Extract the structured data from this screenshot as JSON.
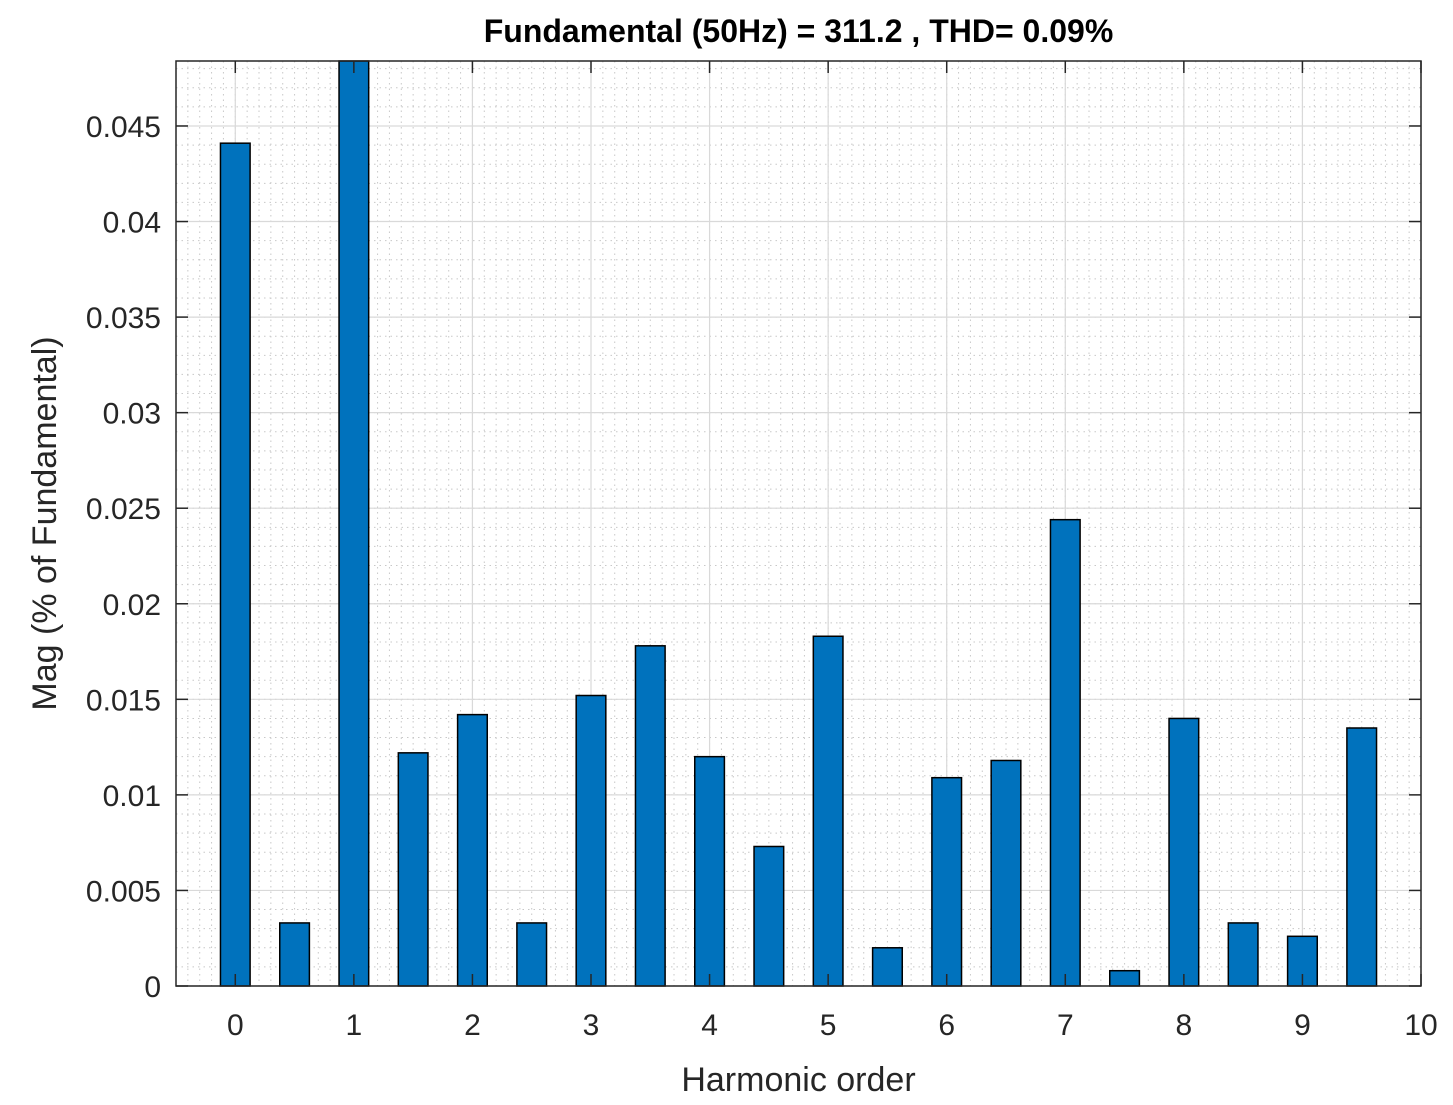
{
  "chart_data": {
    "type": "bar",
    "title": "Fundamental (50Hz) = 311.2 , THD= 0.09%",
    "xlabel": "Harmonic order",
    "ylabel": "Mag (% of Fundamental)",
    "xlim": [
      -0.5,
      10
    ],
    "ylim": [
      0,
      0.0484
    ],
    "xticks": [
      0,
      1,
      2,
      3,
      4,
      5,
      6,
      7,
      8,
      9,
      10
    ],
    "xtick_labels": [
      "0",
      "1",
      "2",
      "3",
      "4",
      "5",
      "6",
      "7",
      "8",
      "9",
      "10"
    ],
    "yticks": [
      0,
      0.005,
      0.01,
      0.015,
      0.02,
      0.025,
      0.03,
      0.035,
      0.04,
      0.045
    ],
    "ytick_labels": [
      "0",
      "0.005",
      "0.01",
      "0.015",
      "0.02",
      "0.025",
      "0.03",
      "0.035",
      "0.04",
      "0.045"
    ],
    "grid": true,
    "minor_grid": true,
    "bar_width": 0.25,
    "x": [
      0,
      0.5,
      1,
      1.5,
      2,
      2.5,
      3,
      3.5,
      4,
      4.5,
      5,
      5.5,
      6,
      6.5,
      7,
      7.5,
      8,
      8.5,
      9,
      9.5
    ],
    "values": [
      0.0441,
      0.0033,
      0.0484,
      0.0122,
      0.0142,
      0.0033,
      0.0152,
      0.0178,
      0.012,
      0.0073,
      0.0183,
      0.002,
      0.0109,
      0.0118,
      0.0244,
      0.0008,
      0.014,
      0.0033,
      0.0026,
      0.0135
    ],
    "colors": {
      "bar": "#0072BD",
      "bar_edge": "#000000",
      "grid": "#d9d9d9",
      "axis": "#262626"
    }
  }
}
